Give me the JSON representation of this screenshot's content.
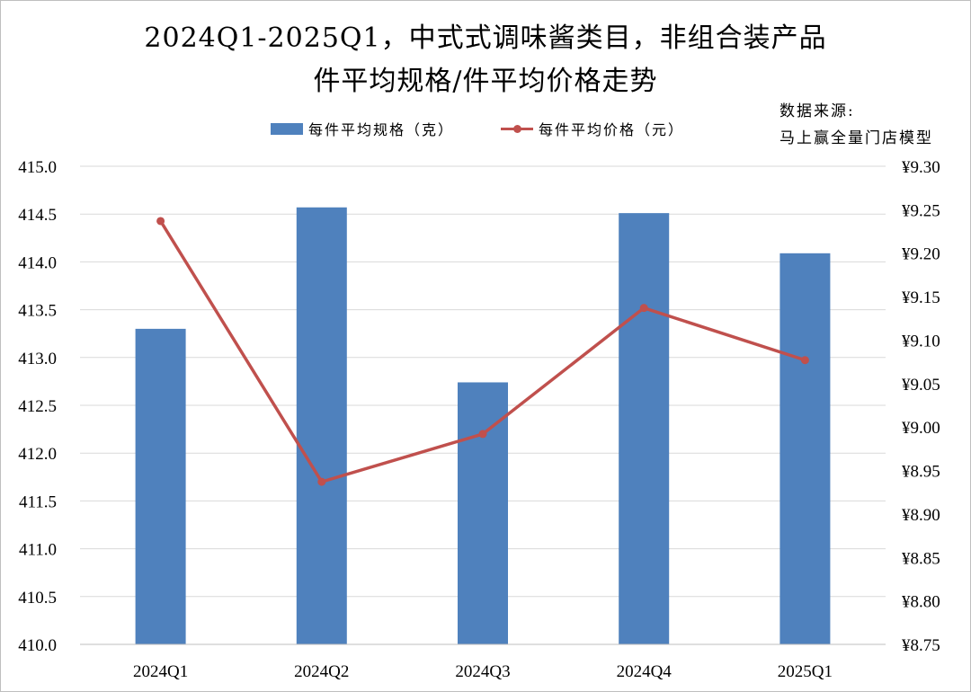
{
  "chart_data": {
    "type": "bar",
    "title": "2024Q1-2025Q1，中式式调味酱类目，非组合装产品",
    "subtitle": "件平均规格/件平均价格走势",
    "source": "数据来源:\n马上赢全量门店模型",
    "categories": [
      "2024Q1",
      "2024Q2",
      "2024Q3",
      "2024Q4",
      "2025Q1"
    ],
    "series": [
      {
        "name": "每件平均规格（克）",
        "type": "bar",
        "axis": "left",
        "color": "#4f81bd",
        "values": [
          413.3,
          414.57,
          412.74,
          414.51,
          414.09
        ]
      },
      {
        "name": "每件平均价格（元）",
        "type": "line",
        "axis": "right",
        "color": "#c0504d",
        "values": [
          9.237,
          8.937,
          8.992,
          9.137,
          9.077
        ]
      }
    ],
    "y_left": {
      "min": 410.0,
      "max": 415.0,
      "step": 0.5,
      "ticks": [
        "410.0",
        "410.5",
        "411.0",
        "411.5",
        "412.0",
        "412.5",
        "413.0",
        "413.5",
        "414.0",
        "414.5",
        "415.0"
      ]
    },
    "y_right": {
      "min": 8.75,
      "max": 9.3,
      "step": 0.05,
      "ticks": [
        "¥8.75",
        "¥8.80",
        "¥8.85",
        "¥8.90",
        "¥8.95",
        "¥9.00",
        "¥9.05",
        "¥9.10",
        "¥9.15",
        "¥9.20",
        "¥9.25",
        "¥9.30"
      ]
    },
    "grid": true,
    "legend_position": "top"
  }
}
